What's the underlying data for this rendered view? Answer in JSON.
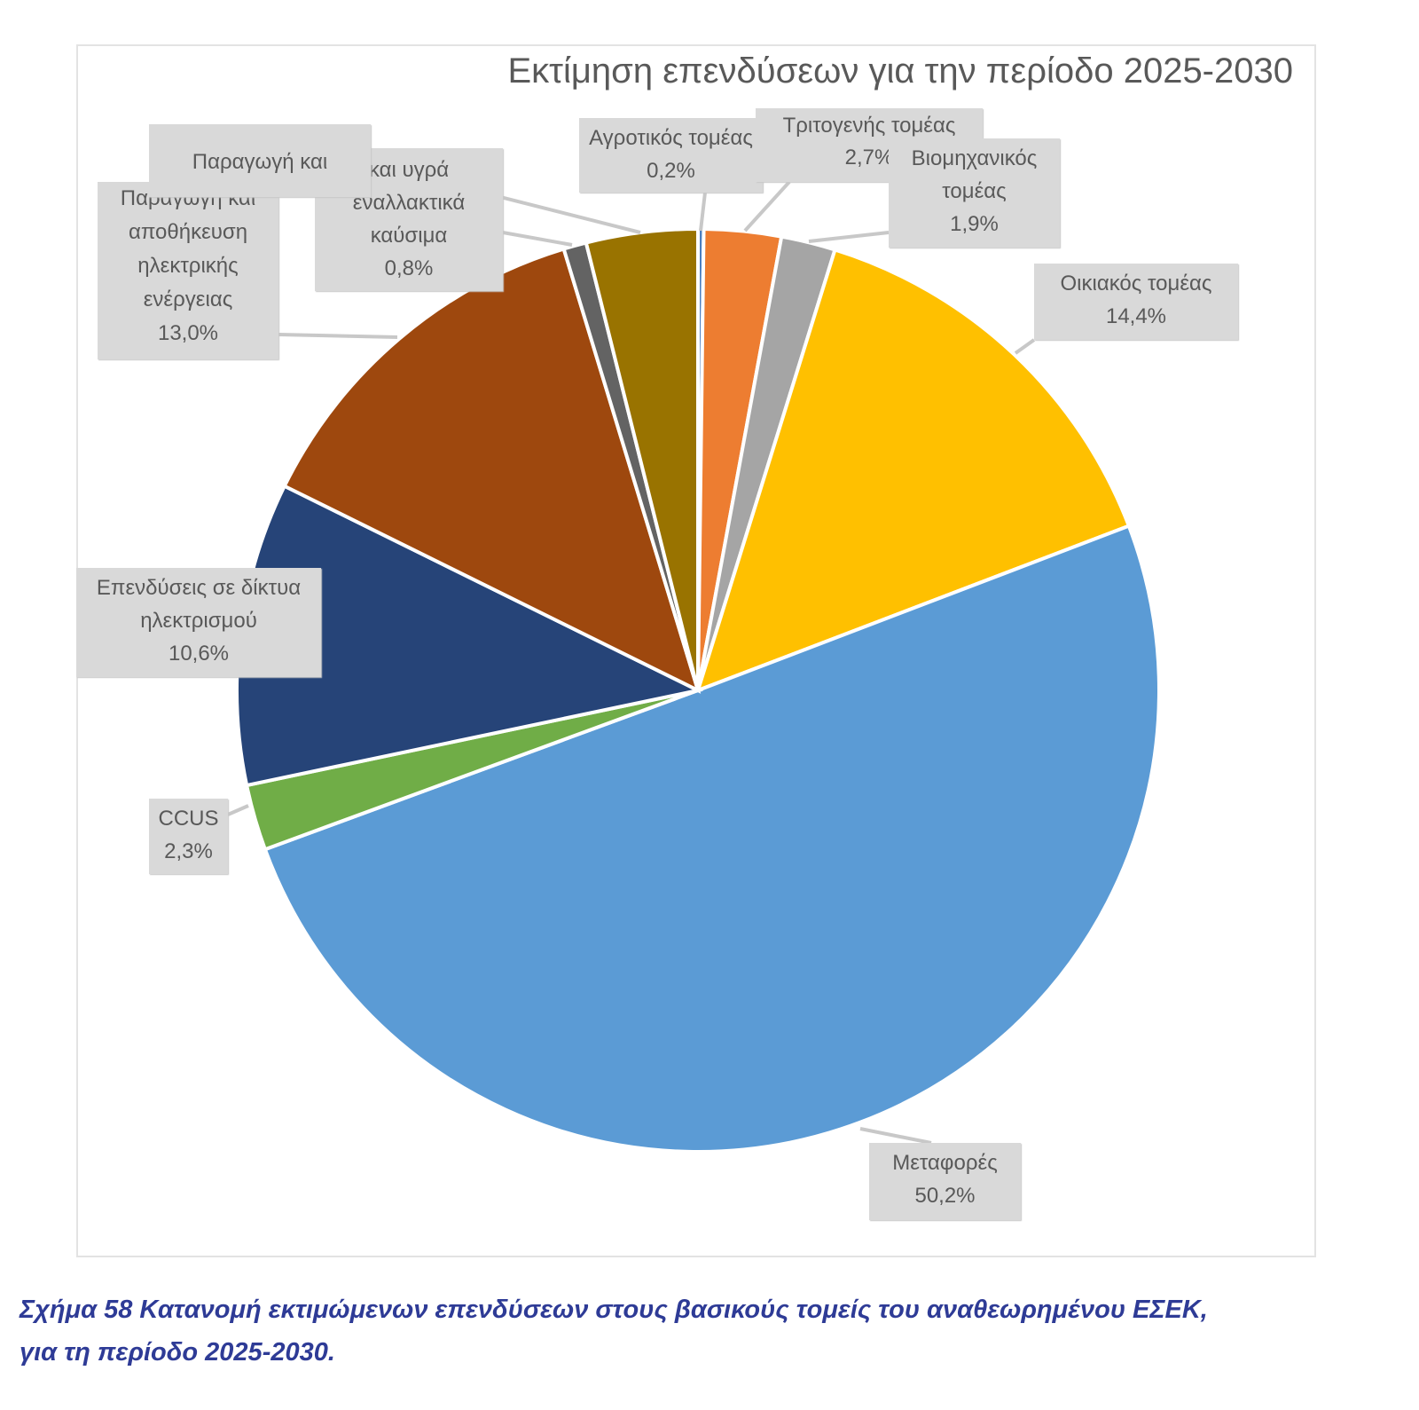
{
  "chart_data": {
    "type": "pie",
    "title": "Εκτίμηση επενδύσεων για την περίοδο 2025-2030",
    "start": "top, clockwise",
    "slices": [
      {
        "label": "Αγροτικός τομέας",
        "value": 0.2,
        "value_label": "0,2%",
        "color": "#4a7fc1"
      },
      {
        "label": "Τριτογενής τομέας",
        "value": 2.7,
        "value_label": "2,7%",
        "color": "#ED7D31"
      },
      {
        "label": "Βιομηχανικός τομέας",
        "value": 1.9,
        "value_label": "1,9%",
        "color": "#A5A5A5"
      },
      {
        "label": "Οικιακός τομέας",
        "value": 14.4,
        "value_label": "14,4%",
        "color": "#FFC000"
      },
      {
        "label": "Μεταφορές",
        "value": 50.2,
        "value_label": "50,2%",
        "color": "#5B9BD5"
      },
      {
        "label": "CCUS",
        "value": 2.3,
        "value_label": "2,3%",
        "color": "#70AD47"
      },
      {
        "label": "Επενδύσεις σε δίκτυα ηλεκτρισμού",
        "value": 10.6,
        "value_label": "10,6%",
        "color": "#264478"
      },
      {
        "label": "Παραγωγή και αποθήκευση ηλεκτρικής ενέργειας",
        "value": 13.0,
        "value_label": "13,0%",
        "color": "#9E480E"
      },
      {
        "label": "και υγρά εναλλακτικά καύσιμα",
        "value": 0.8,
        "value_label": "0,8%",
        "color": "#636363"
      },
      {
        "label": "Παραγωγή και",
        "value": 3.9,
        "color": "#997300"
      }
    ]
  },
  "caption": {
    "line1": "Σχήμα 58 Κατανομή εκτιμώμενων επενδύσεων στους βασικούς τομείς του αναθεωρημένου ΕΣΕΚ,",
    "line2": "για τη περίοδο 2025-2030."
  }
}
